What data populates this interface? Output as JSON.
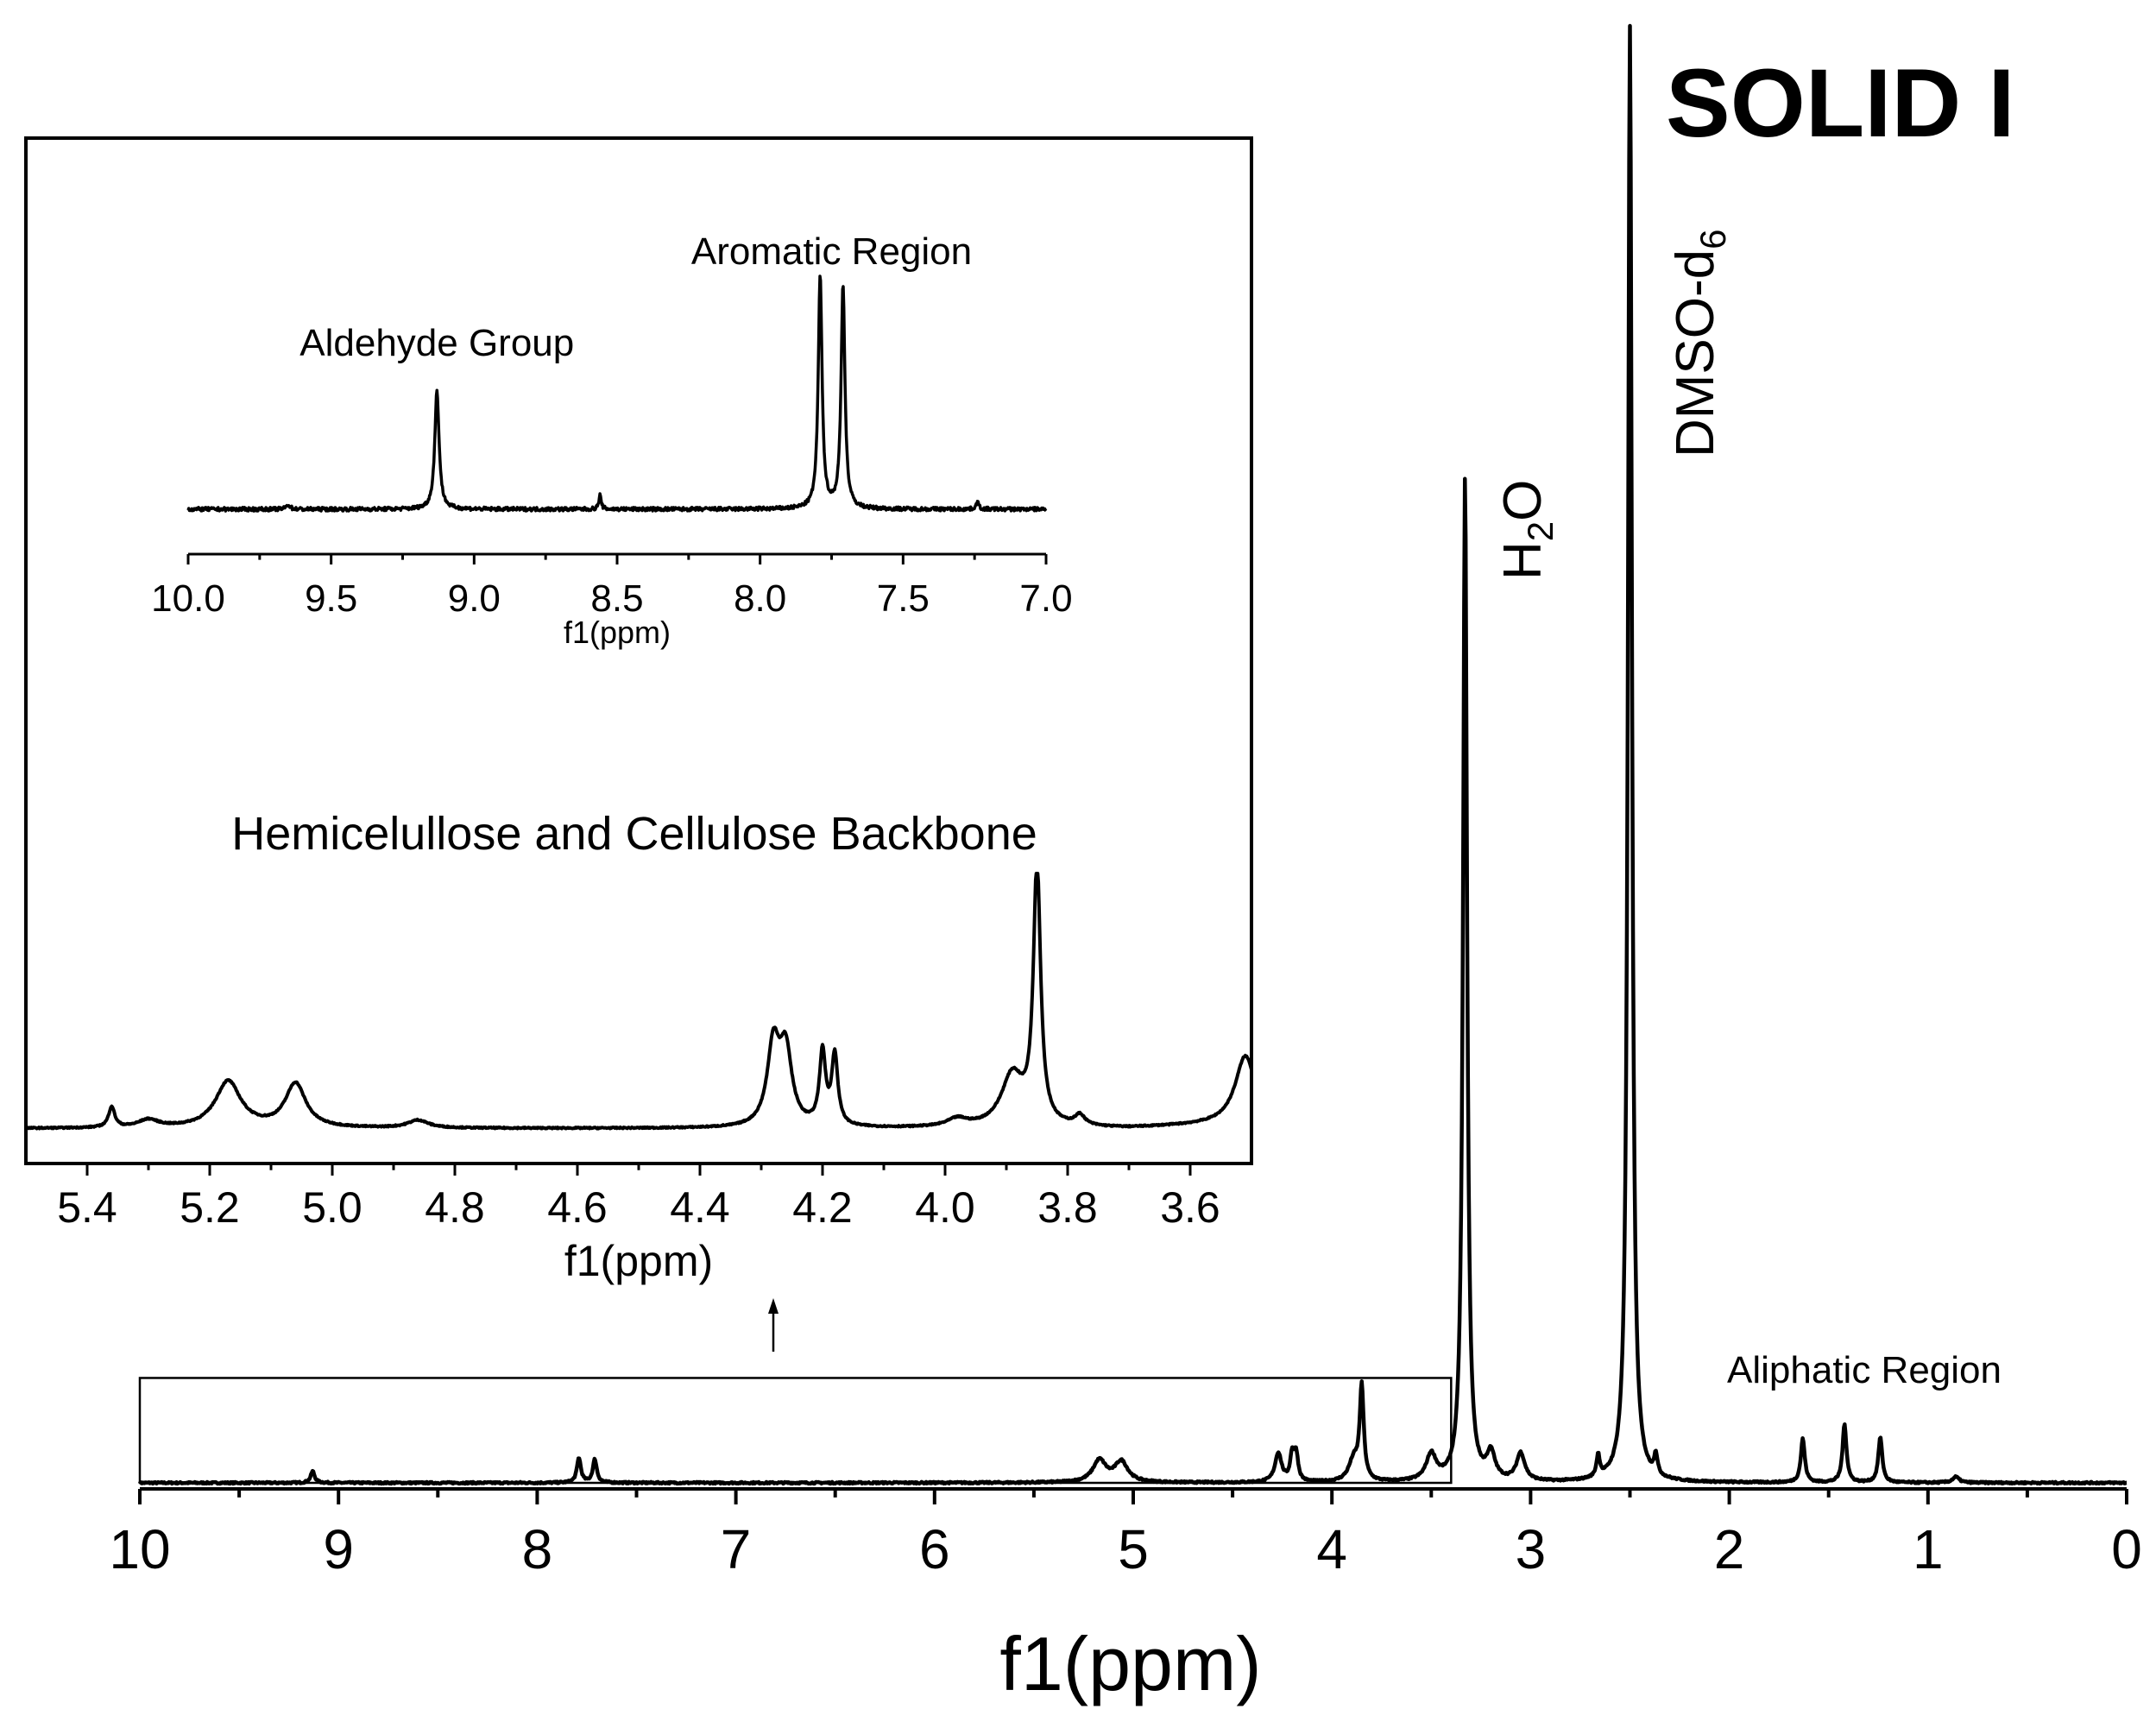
{
  "figure": {
    "title": "SOLID I",
    "sample_region_label": "Hemicelullose and Cellulose Backbone",
    "aliphatic_label": "Aliphatic Region",
    "water_label": "H",
    "water_sub": "2",
    "water_tail": "O",
    "solvent_label": "DMSO-d",
    "solvent_sub": "6"
  },
  "chart_data": [
    {
      "id": "main",
      "type": "line",
      "xlabel": "f1(ppm)",
      "ylabel": "",
      "xlim": [
        10,
        0
      ],
      "ylim": [
        0,
        100
      ],
      "x_reversed": true,
      "xticks": [
        "10",
        "9",
        "8",
        "7",
        "6",
        "5",
        "4",
        "3",
        "2",
        "1",
        "0"
      ],
      "grid": false,
      "peaks": [
        {
          "x": 9.13,
          "height": 0.8,
          "width": 0.012
        },
        {
          "x": 7.79,
          "height": 1.7,
          "width": 0.012
        },
        {
          "x": 7.71,
          "height": 1.6,
          "width": 0.012
        },
        {
          "x": 5.17,
          "height": 1.5,
          "width": 0.04
        },
        {
          "x": 5.06,
          "height": 1.4,
          "width": 0.04
        },
        {
          "x": 4.27,
          "height": 2.0,
          "width": 0.02
        },
        {
          "x": 4.2,
          "height": 1.8,
          "width": 0.012
        },
        {
          "x": 4.18,
          "height": 1.8,
          "width": 0.012
        },
        {
          "x": 3.89,
          "height": 1.5,
          "width": 0.03
        },
        {
          "x": 3.85,
          "height": 6.3,
          "width": 0.012
        },
        {
          "x": 3.5,
          "height": 1.8,
          "width": 0.03
        },
        {
          "x": 3.33,
          "height": 69.0,
          "width": 0.012
        },
        {
          "x": 3.2,
          "height": 1.8,
          "width": 0.025
        },
        {
          "x": 3.05,
          "height": 1.9,
          "width": 0.025
        },
        {
          "x": 2.66,
          "height": 1.5,
          "width": 0.01
        },
        {
          "x": 2.5,
          "height": 100.0,
          "width": 0.012
        },
        {
          "x": 2.37,
          "height": 1.4,
          "width": 0.01
        },
        {
          "x": 1.63,
          "height": 3.0,
          "width": 0.012
        },
        {
          "x": 1.42,
          "height": 4.0,
          "width": 0.012
        },
        {
          "x": 1.24,
          "height": 3.1,
          "width": 0.012
        },
        {
          "x": 0.86,
          "height": 0.4,
          "width": 0.02
        }
      ],
      "zoom_box_xrange": [
        10,
        3.4
      ],
      "zoom_box_ymax": 7.2
    },
    {
      "id": "inset_low",
      "type": "line",
      "xlabel": "f1(ppm)",
      "xlim": [
        5.5,
        3.5
      ],
      "ylim": [
        0,
        100
      ],
      "x_reversed": true,
      "xticks": [
        "5.4",
        "5.2",
        "5.0",
        "4.8",
        "4.6",
        "4.4",
        "4.2",
        "4.0",
        "3.8",
        "3.6"
      ],
      "peaks": [
        {
          "x": 5.36,
          "height": 8,
          "width": 0.006
        },
        {
          "x": 5.3,
          "height": 3,
          "width": 0.02
        },
        {
          "x": 5.17,
          "height": 18,
          "width": 0.025
        },
        {
          "x": 5.06,
          "height": 17,
          "width": 0.02
        },
        {
          "x": 4.86,
          "height": 3,
          "width": 0.02
        },
        {
          "x": 4.28,
          "height": 31,
          "width": 0.012
        },
        {
          "x": 4.26,
          "height": 28,
          "width": 0.012
        },
        {
          "x": 4.2,
          "height": 28,
          "width": 0.006
        },
        {
          "x": 4.18,
          "height": 27,
          "width": 0.006
        },
        {
          "x": 3.98,
          "height": 3,
          "width": 0.02
        },
        {
          "x": 3.89,
          "height": 20,
          "width": 0.022
        },
        {
          "x": 3.85,
          "height": 100,
          "width": 0.007
        },
        {
          "x": 3.78,
          "height": 4,
          "width": 0.01
        },
        {
          "x": 3.51,
          "height": 26,
          "width": 0.02
        }
      ]
    },
    {
      "id": "inset_high",
      "type": "line",
      "xlabel": "f1(ppm)",
      "xlim": [
        10,
        7
      ],
      "ylim": [
        0,
        100
      ],
      "x_reversed": true,
      "xticks": [
        "10.0",
        "9.5",
        "9.0",
        "8.5",
        "8.0",
        "7.5",
        "7.0"
      ],
      "annotations": [
        "Aldehyde Group",
        "Aromatic Region"
      ],
      "peaks": [
        {
          "x": 9.13,
          "height": 51,
          "width": 0.009
        },
        {
          "x": 9.65,
          "height": 2,
          "width": 0.008
        },
        {
          "x": 8.56,
          "height": 6,
          "width": 0.005
        },
        {
          "x": 7.79,
          "height": 100,
          "width": 0.008
        },
        {
          "x": 7.71,
          "height": 96,
          "width": 0.008
        },
        {
          "x": 7.24,
          "height": 3,
          "width": 0.006
        }
      ]
    }
  ]
}
